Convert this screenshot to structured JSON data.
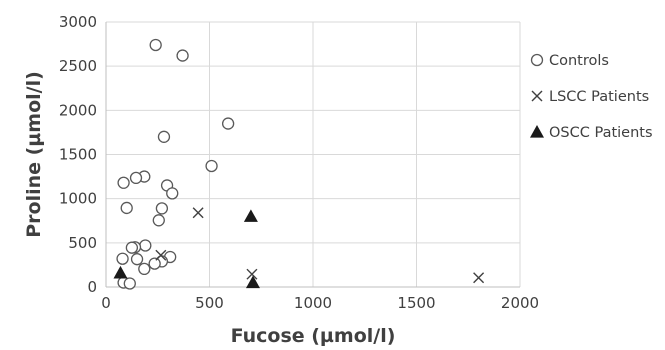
{
  "chart_data": {
    "type": "scatter",
    "xlabel": "Fucose (µmol/l)",
    "ylabel": "Proline (µmol/l)",
    "xlim": [
      0,
      2000
    ],
    "ylim": [
      0,
      3000
    ],
    "x_ticks": [
      0,
      500,
      1000,
      1500,
      2000
    ],
    "y_ticks": [
      0,
      500,
      1000,
      1500,
      2000,
      2500,
      3000
    ],
    "grid": "vertical and horizontal",
    "legend_position": "right",
    "series": [
      {
        "name": "Controls",
        "marker": "circle-open",
        "color": "#595959",
        "points": [
          [
            240,
            2740
          ],
          [
            370,
            2620
          ],
          [
            590,
            1850
          ],
          [
            280,
            1700
          ],
          [
            510,
            1370
          ],
          [
            185,
            1250
          ],
          [
            145,
            1235
          ],
          [
            85,
            1180
          ],
          [
            295,
            1150
          ],
          [
            320,
            1060
          ],
          [
            100,
            895
          ],
          [
            270,
            890
          ],
          [
            255,
            755
          ],
          [
            190,
            470
          ],
          [
            140,
            450
          ],
          [
            125,
            445
          ],
          [
            80,
            320
          ],
          [
            150,
            315
          ],
          [
            310,
            340
          ],
          [
            270,
            290
          ],
          [
            235,
            265
          ],
          [
            185,
            205
          ],
          [
            85,
            50
          ],
          [
            115,
            40
          ]
        ]
      },
      {
        "name": "LSCC Patients",
        "marker": "x",
        "color": "#404040",
        "points": [
          [
            445,
            840
          ],
          [
            265,
            360
          ],
          [
            705,
            145
          ],
          [
            1800,
            105
          ]
        ]
      },
      {
        "name": "OSCC Patients",
        "marker": "triangle-filled",
        "color": "#1a1a1a",
        "points": [
          [
            700,
            800
          ],
          [
            70,
            160
          ],
          [
            710,
            50
          ]
        ]
      }
    ]
  }
}
